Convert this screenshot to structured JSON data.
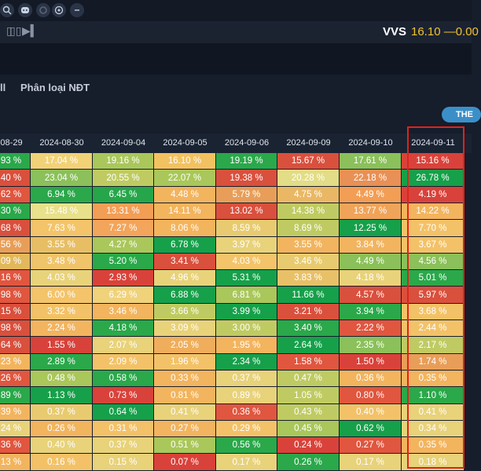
{
  "topbar": {
    "icons": [
      "zoom-icon",
      "discord-icon",
      "settings-icon",
      "target-icon",
      "more-icon"
    ]
  },
  "controls": {
    "ticker": "VVS",
    "price": "16.10 —0.00"
  },
  "tabs": [
    {
      "label": "ll"
    },
    {
      "label": "Phân loại NĐT"
    }
  ],
  "pill": {
    "label": "THE"
  },
  "table": {
    "columns": [
      "08-29",
      "2024-08-30",
      "2024-09-04",
      "2024-09-05",
      "2024-09-06",
      "2024-09-09",
      "2024-09-10",
      "2024-09-11"
    ],
    "rows": [
      [
        "93 %",
        "17.04 %",
        "19.16 %",
        "16.10 %",
        "19.19 %",
        "15.67 %",
        "17.61 %",
        "15.16 %"
      ],
      [
        "40 %",
        "23.04 %",
        "20.55 %",
        "22.07 %",
        "19.38 %",
        "20.28 %",
        "22.18 %",
        "26.78 %"
      ],
      [
        "62 %",
        "6.94 %",
        "6.45 %",
        "4.48 %",
        "5.79 %",
        "4.75 %",
        "4.49 %",
        "4.19 %"
      ],
      [
        "30 %",
        "15.48 %",
        "13.31 %",
        "14.11 %",
        "13.02 %",
        "14.38 %",
        "13.77 %",
        "14.22 %"
      ],
      [
        "68 %",
        "7.63 %",
        "7.27 %",
        "8.06 %",
        "8.59 %",
        "8.69 %",
        "12.25 %",
        "7.70 %"
      ],
      [
        "56 %",
        "3.55 %",
        "4.27 %",
        "6.78 %",
        "3.97 %",
        "3.55 %",
        "3.84 %",
        "3.67 %"
      ],
      [
        "09 %",
        "3.48 %",
        "5.20 %",
        "3.41 %",
        "4.03 %",
        "3.46 %",
        "4.49 %",
        "4.56 %"
      ],
      [
        "16 %",
        "4.03 %",
        "2.93 %",
        "4.96 %",
        "5.31 %",
        "3.83 %",
        "4.18 %",
        "5.01 %"
      ],
      [
        "98 %",
        "6.00 %",
        "6.29 %",
        "6.88 %",
        "6.81 %",
        "11.66 %",
        "4.57 %",
        "5.97 %"
      ],
      [
        "15 %",
        "3.32 %",
        "3.46 %",
        "3.66 %",
        "3.99 %",
        "3.21 %",
        "3.94 %",
        "3.68 %"
      ],
      [
        "98 %",
        "2.24 %",
        "4.18 %",
        "3.09 %",
        "3.00 %",
        "3.40 %",
        "2.22 %",
        "2.44 %"
      ],
      [
        "64 %",
        "1.55 %",
        "2.07 %",
        "2.05 %",
        "1.95 %",
        "2.64 %",
        "2.35 %",
        "2.17 %"
      ],
      [
        "23 %",
        "2.89 %",
        "2.09 %",
        "1.96 %",
        "2.34 %",
        "1.58 %",
        "1.50 %",
        "1.74 %"
      ],
      [
        "26 %",
        "0.48 %",
        "0.58 %",
        "0.33 %",
        "0.37 %",
        "0.47 %",
        "0.36 %",
        "0.35 %"
      ],
      [
        "89 %",
        "1.13 %",
        "0.73 %",
        "0.81 %",
        "0.89 %",
        "1.05 %",
        "0.80 %",
        "1.10 %"
      ],
      [
        "39 %",
        "0.37 %",
        "0.64 %",
        "0.41 %",
        "0.36 %",
        "0.43 %",
        "0.40 %",
        "0.41 %"
      ],
      [
        "24 %",
        "0.26 %",
        "0.31 %",
        "0.27 %",
        "0.29 %",
        "0.45 %",
        "0.62 %",
        "0.34 %"
      ],
      [
        "36 %",
        "0.40 %",
        "0.37 %",
        "0.51 %",
        "0.56 %",
        "0.24 %",
        "0.27 %",
        "0.35 %"
      ],
      [
        "13 %",
        "0.16 %",
        "0.15 %",
        "0.07 %",
        "0.17 %",
        "0.26 %",
        "0.17 %",
        "0.18 %"
      ]
    ],
    "colors": [
      [
        "#2aa84a",
        "#f2d277",
        "#a9c75a",
        "#f2c260",
        "#2aa84a",
        "#d9503d",
        "#8bc05a",
        "#d9423a"
      ],
      [
        "#d9503d",
        "#8bc05a",
        "#bfcb62",
        "#a9c75a",
        "#d9503d",
        "#e2dd86",
        "#e89056",
        "#16a04a"
      ],
      [
        "#e0563f",
        "#2aa84a",
        "#26a64a",
        "#f3b45e",
        "#e89e58",
        "#eab864",
        "#f39e55",
        "#d9423a"
      ],
      [
        "#2aa84a",
        "#e8e08a",
        "#f39e55",
        "#f3b45e",
        "#d9503d",
        "#bfcb62",
        "#f0a45a",
        "#f3b45e"
      ],
      [
        "#d9503d",
        "#f4c46a",
        "#f2a55b",
        "#f3b45e",
        "#e8cb70",
        "#bfcb62",
        "#16a04a",
        "#f3c268"
      ],
      [
        "#e89e58",
        "#e8be64",
        "#a9c75a",
        "#16a04a",
        "#e8d27a",
        "#f2b45e",
        "#f2b45e",
        "#f3c268"
      ],
      [
        "#e2b85c",
        "#f0c46a",
        "#2aa84a",
        "#d9503d",
        "#f4c46a",
        "#e8cb70",
        "#8bc05a",
        "#8bc05a"
      ],
      [
        "#e0563f",
        "#e8d27a",
        "#d9423a",
        "#e8d27a",
        "#16a04a",
        "#e8c068",
        "#e8d27a",
        "#2aa84a"
      ],
      [
        "#e0563f",
        "#f4c46a",
        "#f0d27a",
        "#16a04a",
        "#a9c75a",
        "#16a04a",
        "#d9503d",
        "#d9503d"
      ],
      [
        "#d9503d",
        "#f3c268",
        "#f2b45e",
        "#bfcb62",
        "#16a04a",
        "#d9503d",
        "#2aa84a",
        "#f3c268"
      ],
      [
        "#d9503d",
        "#f2b45e",
        "#2aa84a",
        "#e8d27a",
        "#bfcb62",
        "#2aa84a",
        "#e0563f",
        "#f3c268"
      ],
      [
        "#d9503d",
        "#d9423a",
        "#e8d27a",
        "#f0ae5c",
        "#f3b45e",
        "#16a04a",
        "#8bc05a",
        "#bfcb62"
      ],
      [
        "#f3b45e",
        "#2aa84a",
        "#f3c268",
        "#f3c268",
        "#16a04a",
        "#e0563f",
        "#d9423a",
        "#e89e58"
      ],
      [
        "#e0563f",
        "#a9c75a",
        "#2aa84a",
        "#f3b45e",
        "#e8d27a",
        "#bfcb62",
        "#f3b45e",
        "#f3b45e"
      ],
      [
        "#2aa84a",
        "#16a04a",
        "#d9423a",
        "#f2b45e",
        "#e8d27a",
        "#bfcb62",
        "#e0563f",
        "#2aa84a"
      ],
      [
        "#f2b45e",
        "#e8cb70",
        "#16a04a",
        "#e8d27a",
        "#e0563f",
        "#bfcb62",
        "#f3c268",
        "#e8d27a"
      ],
      [
        "#e8d27a",
        "#f3b45e",
        "#f3c268",
        "#f2b45e",
        "#f3c268",
        "#a9c75a",
        "#16a04a",
        "#e8d27a"
      ],
      [
        "#e0563f",
        "#e8d27a",
        "#e8d27a",
        "#a9c75a",
        "#2aa84a",
        "#d9423a",
        "#e0563f",
        "#f3b45e"
      ],
      [
        "#f2b45e",
        "#f3c268",
        "#e8d27a",
        "#d9423a",
        "#e8d27a",
        "#2aa84a",
        "#e8d27a",
        "#e8d27a"
      ]
    ]
  }
}
